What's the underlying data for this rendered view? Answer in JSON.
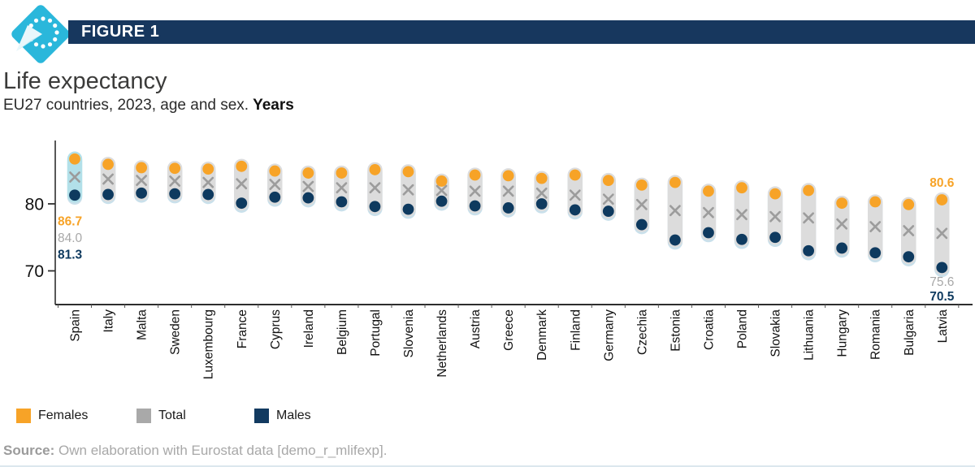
{
  "figure_bar": {
    "label": "FIGURE 1"
  },
  "title": "Life expectancy",
  "subtitle": {
    "regular": "EU27 countries, 2023, age and sex.",
    "bold": "Years"
  },
  "icons": {
    "logo": "eu-stars-cursor-diamond-icon"
  },
  "colors": {
    "header_bar": "#17375E",
    "logo_cyan": "#2AB7DB",
    "females": "#F7A327",
    "total_marker": "#9C9C9C",
    "males": "#0E3A5F",
    "range_bar": "#DCDCDC",
    "range_bar_shadow": "#C9E0EB",
    "highlight_bar": "#B2E0E9",
    "annotation_total_text": "#A8A8A8",
    "axis": "#2E2E2E",
    "source_text": "#A8A8A8"
  },
  "legend": {
    "items": [
      {
        "label": "Females",
        "color": "#F7A327"
      },
      {
        "label": "Total",
        "color": "#A9A9A9"
      },
      {
        "label": "Males",
        "color": "#123A60"
      }
    ]
  },
  "source": {
    "bold": "Source:",
    "text": "Own elaboration with Eurostat data [demo_r_mlifexp]."
  },
  "chart_data": {
    "type": "scatter",
    "title": "Life expectancy",
    "subtitle": "EU27 countries, 2023, age and sex. Years",
    "categories": [
      "Spain",
      "Italy",
      "Malta",
      "Sweden",
      "Luxembourg",
      "France",
      "Cyprus",
      "Ireland",
      "Belgium",
      "Portugal",
      "Slovenia",
      "Netherlands",
      "Austria",
      "Greece",
      "Denmark",
      "Finland",
      "Germany",
      "Czechia",
      "Estonia",
      "Croatia",
      "Poland",
      "Slovakia",
      "Lithuania",
      "Hungary",
      "Romania",
      "Bulgaria",
      "Latvia"
    ],
    "series": [
      {
        "name": "Females",
        "marker": "circle",
        "color": "#F7A327",
        "values": [
          86.7,
          85.9,
          85.4,
          85.3,
          85.2,
          85.6,
          84.9,
          84.6,
          84.6,
          85.1,
          84.8,
          83.4,
          84.3,
          84.2,
          83.8,
          84.3,
          83.5,
          82.8,
          83.2,
          81.9,
          82.4,
          81.5,
          82.0,
          80.1,
          80.3,
          79.9,
          80.6
        ]
      },
      {
        "name": "Total",
        "marker": "x",
        "color": "#9C9C9C",
        "values": [
          84.0,
          83.7,
          83.5,
          83.4,
          83.2,
          83.0,
          82.9,
          82.6,
          82.4,
          82.4,
          82.1,
          82.0,
          81.9,
          81.9,
          81.6,
          81.3,
          80.7,
          79.9,
          79.0,
          78.7,
          78.4,
          78.1,
          77.9,
          77.0,
          76.6,
          76.0,
          75.6
        ]
      },
      {
        "name": "Males",
        "marker": "circle",
        "color": "#0E3A5F",
        "values": [
          81.3,
          81.4,
          81.6,
          81.5,
          81.4,
          80.1,
          81.0,
          80.9,
          80.3,
          79.6,
          79.2,
          80.4,
          79.7,
          79.4,
          80.0,
          79.1,
          78.9,
          76.9,
          74.6,
          75.7,
          74.7,
          75.0,
          73.0,
          73.4,
          72.7,
          72.1,
          70.5
        ]
      }
    ],
    "yticks": [
      80,
      70
    ],
    "ylim": [
      65,
      89.5
    ],
    "grid": false,
    "legend_position": "bottom",
    "highlight_category": "Spain",
    "annotations": {
      "Spain": {
        "females": "86.7",
        "total": "84.0",
        "males": "81.3",
        "position": "left"
      },
      "Latvia": {
        "females": "80.6",
        "total": "75.6",
        "males": "70.5",
        "position": "right"
      }
    }
  }
}
